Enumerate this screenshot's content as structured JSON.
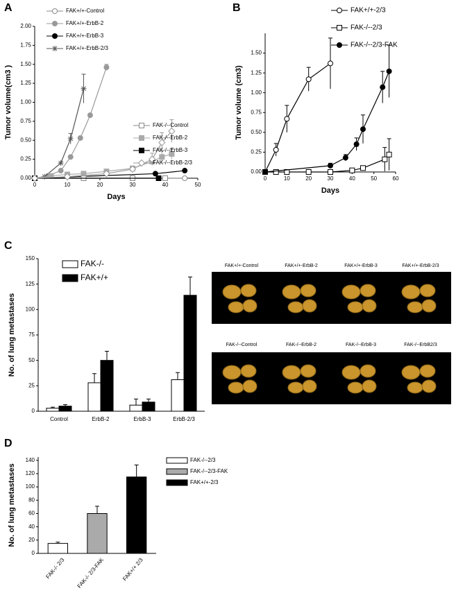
{
  "panels": [
    "A",
    "B",
    "C",
    "D"
  ],
  "chart_data": [
    {
      "type": "line",
      "ylabel": "Tumor volume(cm3 )",
      "xlabel": "Days",
      "xlim": [
        0,
        50
      ],
      "xticks": [
        0,
        10,
        20,
        30,
        40,
        50
      ],
      "ylim": [
        0,
        2
      ],
      "yticks": [
        {
          "value": 0,
          "label": "0.00"
        },
        {
          "value": 0.25,
          "label": "0.25"
        },
        {
          "value": 0.5,
          "label": "0.50"
        },
        {
          "value": 0.75,
          "label": "0.75"
        },
        {
          "value": 1,
          "label": "1.00"
        },
        {
          "value": 1.25,
          "label": "1.25"
        },
        {
          "value": 1.5,
          "label": "1.50"
        },
        {
          "value": 1.75,
          "label": "1.75"
        },
        {
          "value": 2,
          "label": "2.00"
        }
      ],
      "series": [
        {
          "name": "FAK+/+-Control",
          "color": "#888888",
          "marker": "circle",
          "fill": "#ffffff",
          "x": [
            0,
            15,
            30,
            40,
            46
          ],
          "values": [
            0,
            0,
            0,
            0,
            0
          ],
          "errors": [
            null,
            null,
            null,
            null,
            null
          ]
        },
        {
          "name": "FAK+/+-ErbB-2",
          "color": "#999999",
          "marker": "circle",
          "fill": "#999999",
          "x": [
            0,
            4,
            8,
            11,
            14,
            17,
            22
          ],
          "values": [
            0,
            0.03,
            0.1,
            0.28,
            0.53,
            0.83,
            1.46
          ],
          "errors": [
            null,
            null,
            null,
            null,
            null,
            null,
            0.04
          ]
        },
        {
          "name": "FAK+/+-ErbB-3",
          "color": "#000000",
          "marker": "circle",
          "fill": "#000000",
          "x": [
            0,
            37,
            46
          ],
          "values": [
            0,
            0.06,
            0.1
          ],
          "errors": [
            null,
            null,
            null
          ]
        },
        {
          "name": "FAK+/+-ErbB-2/3",
          "color": "#555555",
          "marker": "asterisk",
          "fill": "#555555",
          "x": [
            0,
            3,
            8,
            11,
            15
          ],
          "values": [
            0,
            0.02,
            0.2,
            0.52,
            1.18
          ],
          "errors": [
            null,
            null,
            null,
            0.07,
            0.19
          ]
        },
        {
          "name": "FAK-/--Control",
          "color": "#888888",
          "marker": "square",
          "fill": "#ffffff",
          "x": [
            0,
            15,
            30,
            40
          ],
          "values": [
            0,
            0,
            0,
            0
          ],
          "errors": [
            null,
            null,
            null,
            null
          ]
        },
        {
          "name": "FAK-/--ErbB-2",
          "color": "#aaaaaa",
          "marker": "square",
          "fill": "#aaaaaa",
          "x": [
            0,
            5,
            10,
            15,
            22,
            30,
            36,
            39,
            42
          ],
          "values": [
            0,
            0.03,
            0.05,
            0.06,
            0.09,
            0.13,
            0.22,
            0.28,
            0.32
          ],
          "errors": [
            null,
            null,
            null,
            null,
            null,
            null,
            0.05,
            0.08,
            0.07
          ]
        },
        {
          "name": "FAK-/--ErbB-3",
          "color": "#000000",
          "marker": "square",
          "fill": "#000000",
          "x": [
            0,
            38
          ],
          "values": [
            0,
            0
          ],
          "errors": [
            null,
            null
          ]
        },
        {
          "name": "FAK-/--ErbB-2/3",
          "color": "#999999",
          "marker": "diamond",
          "fill": "#ffffff",
          "x": [
            0,
            10,
            22,
            30,
            36,
            39,
            42
          ],
          "values": [
            0,
            0.02,
            0.06,
            0.12,
            0.25,
            0.47,
            0.62
          ],
          "errors": [
            null,
            null,
            null,
            null,
            0.08,
            0.13,
            0.15
          ]
        }
      ]
    },
    {
      "type": "line",
      "ylabel": "Tumor volume (cm3)",
      "xlabel": "Days",
      "xlim": [
        0,
        60
      ],
      "xticks": [
        0,
        10,
        20,
        30,
        40,
        50,
        60
      ],
      "ylim": [
        0,
        1.75
      ],
      "yticks": [
        {
          "value": 0,
          "label": "0.00"
        },
        {
          "value": 0.25,
          "label": "0.25"
        },
        {
          "value": 0.5,
          "label": "0.50"
        },
        {
          "value": 0.75,
          "label": "0.75"
        },
        {
          "value": 1,
          "label": "1.00"
        },
        {
          "value": 1.25,
          "label": "1.25"
        },
        {
          "value": 1.5,
          "label": "1.50"
        }
      ],
      "series": [
        {
          "name": "FAK+/+-2/3",
          "color": "#000000",
          "marker": "circle",
          "fill": "#ffffff",
          "x": [
            0,
            5,
            10,
            20,
            30
          ],
          "values": [
            0,
            0.28,
            0.67,
            1.17,
            1.37
          ],
          "errors": [
            null,
            0.08,
            0.17,
            0.15,
            0.32
          ]
        },
        {
          "name": "FAK-/--2/3",
          "color": "#000000",
          "marker": "square",
          "fill": "#ffffff",
          "x": [
            0,
            5,
            10,
            20,
            30,
            40,
            45,
            55,
            57
          ],
          "values": [
            0,
            0,
            0,
            0,
            0,
            0.02,
            0.05,
            0.16,
            0.22
          ],
          "errors": [
            null,
            null,
            null,
            null,
            null,
            null,
            null,
            0.15,
            0.2
          ]
        },
        {
          "name": "FAK-/--2/3-FAK",
          "color": "#000000",
          "marker": "circle",
          "fill": "#000000",
          "x": [
            0,
            30,
            37,
            42,
            45,
            54,
            57
          ],
          "values": [
            0,
            0.08,
            0.18,
            0.35,
            0.54,
            1.07,
            1.27
          ],
          "errors": [
            null,
            0.03,
            0.04,
            0.08,
            0.18,
            0.2,
            0.33
          ]
        }
      ]
    },
    {
      "type": "bar",
      "ylabel": "No. of lung metastases",
      "categories": [
        "Control",
        "ErbB-2",
        "ErbB-3",
        "ErbB-2/3"
      ],
      "ylim": [
        0,
        150
      ],
      "yticks": [
        0,
        25,
        50,
        75,
        100,
        125,
        150
      ],
      "series": [
        {
          "name": "FAK-/-",
          "color": "#ffffff",
          "values": [
            3,
            28,
            6,
            31
          ],
          "errors": [
            1,
            9,
            6,
            7
          ]
        },
        {
          "name": "FAK+/+",
          "color": "#000000",
          "values": [
            5,
            50,
            9,
            114
          ],
          "errors": [
            1.5,
            9,
            3,
            18
          ]
        }
      ]
    },
    {
      "type": "bar1",
      "ylabel": "No. of lung metastases",
      "categories": [
        "FAK-/- 2/3",
        "FAK-/- 2/3-FAK",
        "FAK+/+ 2/3"
      ],
      "values": [
        15,
        60,
        115
      ],
      "errors": [
        2,
        11,
        18
      ],
      "colors": [
        "#ffffff",
        "#aaaaaa",
        "#000000"
      ],
      "legend": [
        "FAK-/--2/3",
        "FAK-/--2/3-FAK",
        "FAK+/+-2/3"
      ],
      "ylim": [
        0,
        145
      ],
      "yticks": [
        0,
        20,
        40,
        60,
        80,
        100,
        120,
        140
      ]
    }
  ],
  "photos": {
    "top_labels": [
      "FAK+/+-Control",
      "FAK+/+-ErbB-2",
      "FAK+/+-ErbB-3",
      "FAK+/+-ErbB-2/3"
    ],
    "bottom_labels": [
      "FAK-/--Control",
      "FAK-/--ErbB-2",
      "FAK-/--ErbB-3",
      "FAK-/--ErbB2/3"
    ]
  }
}
